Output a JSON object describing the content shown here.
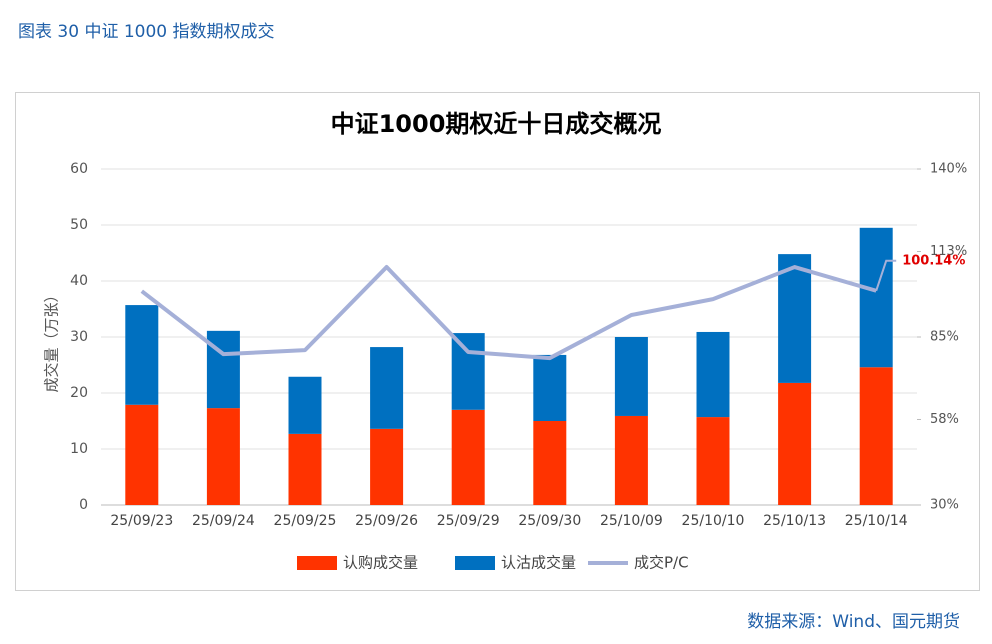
{
  "header": "图表 30 中证 1000 指数期权成交",
  "source": "数据来源：Wind、国元期货",
  "chart_data": {
    "type": "bar-line",
    "title": "中证1000期权近十日成交概况",
    "y_label": "成交量（万张）",
    "categories": [
      "25/09/23",
      "25/09/24",
      "25/09/25",
      "25/09/26",
      "25/09/29",
      "25/09/30",
      "25/10/09",
      "25/10/10",
      "25/10/13",
      "25/10/14"
    ],
    "series": [
      {
        "name": "认购成交量",
        "color": "#ff3300",
        "kind": "bar",
        "values": [
          17.9,
          17.3,
          12.7,
          13.6,
          17.0,
          15.0,
          15.9,
          15.7,
          21.8,
          24.6
        ]
      },
      {
        "name": "认沽成交量",
        "color": "#0070c0",
        "kind": "bar",
        "values": [
          17.8,
          13.8,
          10.2,
          14.6,
          13.7,
          11.8,
          14.1,
          15.2,
          23.0,
          24.9
        ]
      },
      {
        "name": "成交P/C",
        "color": "#a5b0d8",
        "kind": "line",
        "axis": "y2",
        "values": [
          100.0,
          79.4,
          80.7,
          107.9,
          80.1,
          78.1,
          92.2,
          97.4,
          107.9,
          100.14
        ],
        "value_labels": [
          null,
          null,
          null,
          null,
          null,
          null,
          null,
          null,
          null,
          "100.14%"
        ]
      }
    ],
    "ylim": [
      0,
      60
    ],
    "yticks": [
      0,
      10,
      20,
      30,
      40,
      50,
      60
    ],
    "y2lim": [
      30,
      140
    ],
    "y2ticks": [
      {
        "value": 30,
        "label": "30%"
      },
      {
        "value": 58,
        "label": "58%"
      },
      {
        "value": 85,
        "label": "85%"
      },
      {
        "value": 113,
        "label": "113%"
      },
      {
        "value": 140,
        "label": "140%"
      }
    ],
    "grid": true
  }
}
